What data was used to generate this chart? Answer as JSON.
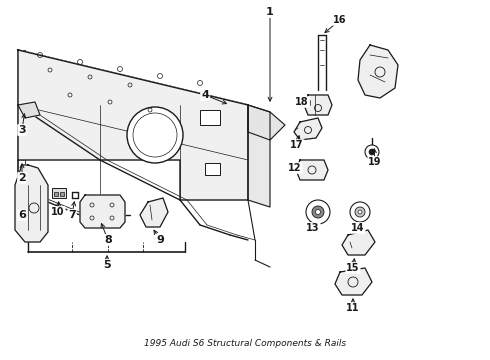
{
  "title": "1995 Audi S6 Structural Components & Rails",
  "bg": "#ffffff",
  "fg": "#1a1a1a",
  "fig_width": 4.9,
  "fig_height": 3.6,
  "dpi": 100
}
